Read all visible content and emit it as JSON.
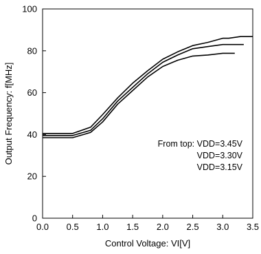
{
  "chart_data": {
    "type": "line",
    "title": "",
    "xlabel": "Control Voltage: VI[V]",
    "ylabel": "Output Frequency: f[MHz]",
    "xlim": [
      0.0,
      3.5
    ],
    "ylim": [
      0,
      100
    ],
    "x_ticks": [
      "0.0",
      "0.5",
      "1.0",
      "1.5",
      "2.0",
      "2.5",
      "3.0",
      "3.5"
    ],
    "y_ticks": [
      "0",
      "20",
      "40",
      "60",
      "80",
      "100"
    ],
    "grid": false,
    "legend": "none",
    "line_color": "#000000",
    "annotation": [
      "From top: VDD=3.45V",
      "VDD=3.30V",
      "VDD=3.15V"
    ],
    "series": [
      {
        "name": "VDD=3.45V",
        "x": [
          0.0,
          0.5,
          0.8,
          1.0,
          1.25,
          1.5,
          1.75,
          2.0,
          2.25,
          2.5,
          2.75,
          3.0,
          3.1,
          3.3,
          3.35,
          3.5
        ],
        "y": [
          40.5,
          40.5,
          43.5,
          49.5,
          57.5,
          64.5,
          70.5,
          76.0,
          79.5,
          82.5,
          84.0,
          86.0,
          86.0,
          86.8,
          86.8,
          86.8
        ]
      },
      {
        "name": "VDD=3.30V",
        "x": [
          0.0,
          0.5,
          0.8,
          1.0,
          1.25,
          1.5,
          1.75,
          2.0,
          2.25,
          2.5,
          2.75,
          3.0,
          3.1,
          3.35
        ],
        "y": [
          39.5,
          39.5,
          42.0,
          47.5,
          56.0,
          62.5,
          69.0,
          74.5,
          78.0,
          81.0,
          82.0,
          83.0,
          83.0,
          83.0
        ]
      },
      {
        "name": "VDD=3.15V",
        "x": [
          0.0,
          0.5,
          0.8,
          1.0,
          1.25,
          1.5,
          1.75,
          2.0,
          2.25,
          2.5,
          2.75,
          3.0,
          3.2
        ],
        "y": [
          38.5,
          38.5,
          41.0,
          46.0,
          54.5,
          61.0,
          67.5,
          72.5,
          75.5,
          77.5,
          78.0,
          78.8,
          78.8
        ]
      }
    ]
  }
}
